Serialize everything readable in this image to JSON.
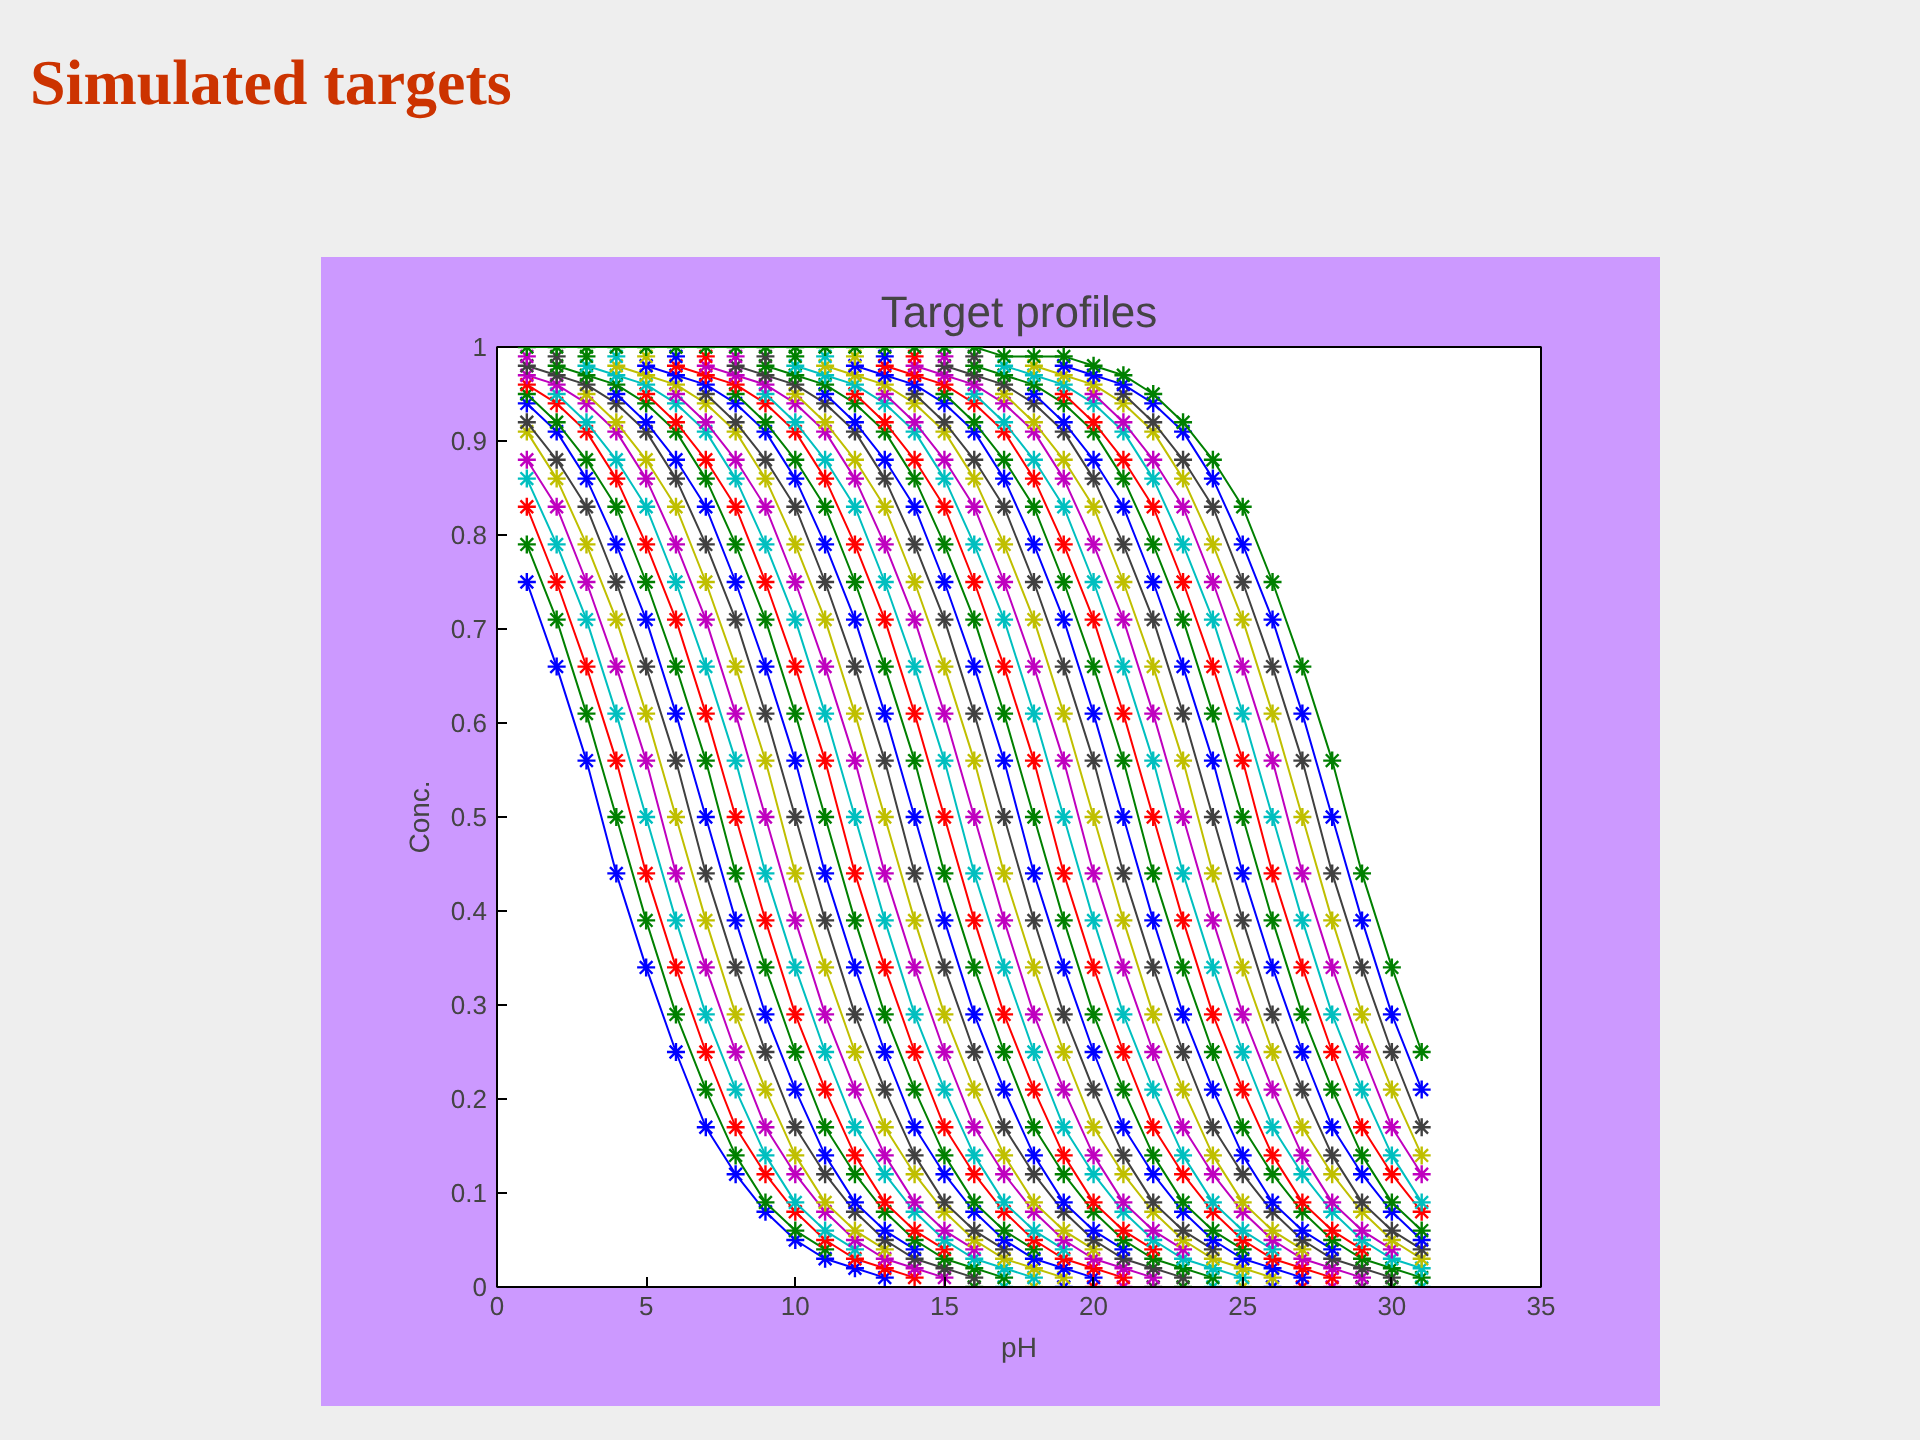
{
  "chart_data": {
    "type": "line",
    "title": "Target profiles",
    "xlabel": "pH",
    "ylabel": "Conc.",
    "annotations": [
      "Simulated targets"
    ],
    "x": [
      1,
      2,
      3,
      4,
      5,
      6,
      7,
      8,
      9,
      10,
      11,
      12,
      13,
      14,
      15,
      16,
      17,
      18,
      19,
      20,
      21,
      22,
      23,
      24,
      25,
      26,
      27,
      28,
      29,
      30,
      31
    ],
    "xlim": [
      0,
      35
    ],
    "xticks": [
      0,
      5,
      10,
      15,
      20,
      25,
      30,
      35
    ],
    "ylim": [
      0,
      1
    ],
    "yticks": [
      0,
      0.1,
      0.2,
      0.3,
      0.4,
      0.5,
      0.6,
      0.7,
      0.8,
      0.9,
      1
    ],
    "grid": false,
    "marker": "cross",
    "line_style": "solid",
    "series": [
      {
        "color": "#0000ff",
        "values": [
          0.75,
          0.66,
          0.56,
          0.44,
          0.34,
          0.25,
          0.17,
          0.12,
          0.08,
          0.05,
          0.03,
          0.02,
          0.01,
          null,
          null,
          null,
          null,
          null,
          null,
          null,
          null,
          null,
          null,
          null,
          null,
          null,
          null,
          null,
          null,
          null,
          null
        ]
      },
      {
        "color": "#008000",
        "values": [
          0.79,
          0.71,
          0.61,
          0.5,
          0.39,
          0.29,
          0.21,
          0.14,
          0.09,
          0.06,
          0.04,
          null,
          null,
          null,
          null,
          0,
          null,
          null,
          null,
          null,
          null,
          null,
          null,
          null,
          null,
          null,
          null,
          null,
          null,
          null,
          null
        ]
      },
      {
        "color": "#ff0000",
        "values": [
          0.83,
          0.75,
          0.66,
          0.56,
          0.44,
          0.34,
          0.25,
          0.17,
          0.12,
          0.08,
          0.05,
          0.03,
          0.02,
          0.01,
          null,
          null,
          null,
          null,
          null,
          null,
          null,
          null,
          null,
          null,
          null,
          null,
          null,
          null,
          null,
          null,
          null
        ]
      },
      {
        "color": "#00bfbf",
        "values": [
          0.86,
          0.79,
          0.71,
          0.61,
          0.5,
          0.39,
          0.29,
          0.21,
          0.14,
          0.09,
          0.06,
          0.04,
          null,
          null,
          null,
          null,
          0,
          null,
          null,
          null,
          null,
          null,
          null,
          null,
          null,
          null,
          null,
          null,
          null,
          null,
          null
        ]
      },
      {
        "color": "#bf00bf",
        "values": [
          0.88,
          0.83,
          0.75,
          0.66,
          0.56,
          0.44,
          0.34,
          0.25,
          0.17,
          0.12,
          0.08,
          0.05,
          0.03,
          0.02,
          0.01,
          null,
          null,
          null,
          null,
          null,
          null,
          null,
          null,
          null,
          null,
          null,
          null,
          null,
          null,
          null,
          null
        ]
      },
      {
        "color": "#bfbf00",
        "values": [
          0.91,
          0.86,
          0.79,
          0.71,
          0.61,
          0.5,
          0.39,
          0.29,
          0.21,
          0.14,
          0.09,
          0.06,
          0.04,
          null,
          null,
          null,
          null,
          0,
          null,
          null,
          null,
          null,
          null,
          null,
          null,
          null,
          null,
          null,
          null,
          null,
          null
        ]
      },
      {
        "color": "#404040",
        "values": [
          0.92,
          0.88,
          0.83,
          0.75,
          0.66,
          0.56,
          0.44,
          0.34,
          0.25,
          0.17,
          0.12,
          0.08,
          0.05,
          0.03,
          0.02,
          0.01,
          null,
          null,
          null,
          null,
          null,
          null,
          null,
          null,
          null,
          null,
          null,
          null,
          null,
          null,
          null
        ]
      },
      {
        "color": "#0000ff",
        "values": [
          0.94,
          0.91,
          0.86,
          0.79,
          0.71,
          0.61,
          0.5,
          0.39,
          0.29,
          0.21,
          0.14,
          0.09,
          0.06,
          0.04,
          null,
          null,
          null,
          null,
          0,
          null,
          null,
          null,
          null,
          null,
          null,
          null,
          null,
          null,
          null,
          null,
          null
        ]
      },
      {
        "color": "#008000",
        "values": [
          0.95,
          0.92,
          0.88,
          0.83,
          0.75,
          0.66,
          0.56,
          0.44,
          0.34,
          0.25,
          0.17,
          0.12,
          0.08,
          0.05,
          0.03,
          0.02,
          0.01,
          null,
          null,
          null,
          null,
          null,
          null,
          null,
          null,
          null,
          null,
          null,
          null,
          null,
          null
        ]
      },
      {
        "color": "#ff0000",
        "values": [
          0.96,
          0.94,
          0.91,
          0.86,
          0.79,
          0.71,
          0.61,
          0.5,
          0.39,
          0.29,
          0.21,
          0.14,
          0.09,
          0.06,
          0.04,
          null,
          null,
          null,
          null,
          0,
          null,
          null,
          null,
          null,
          null,
          null,
          null,
          null,
          null,
          null,
          null
        ]
      },
      {
        "color": "#00bfbf",
        "values": [
          null,
          0.95,
          0.92,
          0.88,
          0.83,
          0.75,
          0.66,
          0.56,
          0.44,
          0.34,
          0.25,
          0.17,
          0.12,
          0.08,
          0.05,
          0.03,
          0.02,
          0.01,
          null,
          null,
          null,
          null,
          null,
          null,
          null,
          null,
          null,
          null,
          null,
          null,
          null
        ]
      },
      {
        "color": "#bf00bf",
        "values": [
          0.97,
          0.96,
          0.94,
          0.91,
          0.86,
          0.79,
          0.71,
          0.61,
          0.5,
          0.39,
          0.29,
          0.21,
          0.14,
          0.09,
          0.06,
          0.04,
          null,
          null,
          null,
          null,
          0,
          null,
          null,
          null,
          null,
          null,
          null,
          null,
          null,
          null,
          null
        ]
      },
      {
        "color": "#bfbf00",
        "values": [
          null,
          null,
          0.95,
          0.92,
          0.88,
          0.83,
          0.75,
          0.66,
          0.56,
          0.44,
          0.34,
          0.25,
          0.17,
          0.12,
          0.08,
          0.05,
          0.03,
          0.02,
          0.01,
          null,
          null,
          null,
          null,
          null,
          null,
          null,
          null,
          null,
          null,
          null,
          null
        ]
      },
      {
        "color": "#404040",
        "values": [
          0.98,
          0.97,
          0.96,
          0.94,
          0.91,
          0.86,
          0.79,
          0.71,
          0.61,
          0.5,
          0.39,
          0.29,
          0.21,
          0.14,
          0.09,
          0.06,
          0.04,
          null,
          null,
          null,
          null,
          0,
          null,
          null,
          null,
          null,
          null,
          null,
          null,
          null,
          null
        ]
      },
      {
        "color": "#0000ff",
        "values": [
          null,
          null,
          null,
          0.95,
          0.92,
          0.88,
          0.83,
          0.75,
          0.66,
          0.56,
          0.44,
          0.34,
          0.25,
          0.17,
          0.12,
          0.08,
          0.05,
          0.03,
          0.02,
          0.01,
          null,
          null,
          null,
          null,
          null,
          null,
          null,
          null,
          null,
          null,
          null
        ]
      },
      {
        "color": "#008000",
        "values": [
          null,
          0.98,
          0.97,
          0.96,
          0.94,
          0.91,
          0.86,
          0.79,
          0.71,
          0.61,
          0.5,
          0.39,
          0.29,
          0.21,
          0.14,
          0.09,
          0.06,
          0.04,
          null,
          null,
          null,
          null,
          0,
          null,
          null,
          null,
          null,
          null,
          null,
          null,
          null
        ]
      },
      {
        "color": "#ff0000",
        "values": [
          null,
          null,
          null,
          null,
          0.95,
          0.92,
          0.88,
          0.83,
          0.75,
          0.66,
          0.56,
          0.44,
          0.34,
          0.25,
          0.17,
          0.12,
          0.08,
          0.05,
          0.03,
          0.02,
          0.01,
          null,
          null,
          null,
          null,
          null,
          null,
          null,
          null,
          null,
          null
        ]
      },
      {
        "color": "#00bfbf",
        "values": [
          null,
          null,
          0.98,
          0.97,
          0.96,
          0.94,
          0.91,
          0.86,
          0.79,
          0.71,
          0.61,
          0.5,
          0.39,
          0.29,
          0.21,
          0.14,
          0.09,
          0.06,
          0.04,
          null,
          null,
          null,
          null,
          0,
          null,
          null,
          null,
          null,
          null,
          null,
          null
        ]
      },
      {
        "color": "#bf00bf",
        "values": [
          0.99,
          null,
          null,
          null,
          null,
          0.95,
          0.92,
          0.88,
          0.83,
          0.75,
          0.66,
          0.56,
          0.44,
          0.34,
          0.25,
          0.17,
          0.12,
          0.08,
          0.05,
          0.03,
          0.02,
          0.01,
          null,
          null,
          null,
          null,
          null,
          null,
          null,
          null,
          null
        ]
      },
      {
        "color": "#bfbf00",
        "values": [
          null,
          null,
          null,
          0.98,
          0.97,
          0.96,
          0.94,
          0.91,
          0.86,
          0.79,
          0.71,
          0.61,
          0.5,
          0.39,
          0.29,
          0.21,
          0.14,
          0.09,
          0.06,
          0.04,
          null,
          null,
          null,
          null,
          0,
          null,
          null,
          null,
          null,
          null,
          null
        ]
      },
      {
        "color": "#404040",
        "values": [
          null,
          0.99,
          null,
          null,
          null,
          null,
          0.95,
          0.92,
          0.88,
          0.83,
          0.75,
          0.66,
          0.56,
          0.44,
          0.34,
          0.25,
          0.17,
          0.12,
          0.08,
          0.05,
          0.03,
          0.02,
          0.01,
          null,
          null,
          null,
          null,
          null,
          null,
          null,
          null
        ]
      },
      {
        "color": "#0000ff",
        "values": [
          null,
          null,
          null,
          null,
          0.98,
          0.97,
          0.96,
          0.94,
          0.91,
          0.86,
          0.79,
          0.71,
          0.61,
          0.5,
          0.39,
          0.29,
          0.21,
          0.14,
          0.09,
          0.06,
          0.04,
          null,
          null,
          null,
          null,
          0,
          null,
          null,
          null,
          null,
          null
        ]
      },
      {
        "color": "#008000",
        "values": [
          null,
          null,
          0.99,
          null,
          null,
          null,
          null,
          0.95,
          0.92,
          0.88,
          0.83,
          0.75,
          0.66,
          0.56,
          0.44,
          0.34,
          0.25,
          0.17,
          0.12,
          0.08,
          0.05,
          0.03,
          0.02,
          0.01,
          null,
          null,
          null,
          null,
          null,
          null,
          null
        ]
      },
      {
        "color": "#ff0000",
        "values": [
          null,
          null,
          null,
          null,
          null,
          0.98,
          0.97,
          0.96,
          0.94,
          0.91,
          0.86,
          0.79,
          0.71,
          0.61,
          0.5,
          0.39,
          0.29,
          0.21,
          0.14,
          0.09,
          0.06,
          0.04,
          null,
          null,
          null,
          null,
          0,
          null,
          null,
          null,
          null
        ]
      },
      {
        "color": "#00bfbf",
        "values": [
          null,
          null,
          null,
          0.99,
          null,
          null,
          null,
          null,
          0.95,
          0.92,
          0.88,
          0.83,
          0.75,
          0.66,
          0.56,
          0.44,
          0.34,
          0.25,
          0.17,
          0.12,
          0.08,
          0.05,
          0.03,
          0.02,
          0.01,
          null,
          null,
          null,
          null,
          null,
          null
        ]
      },
      {
        "color": "#bf00bf",
        "values": [
          null,
          null,
          null,
          null,
          null,
          null,
          0.98,
          0.97,
          0.96,
          0.94,
          0.91,
          0.86,
          0.79,
          0.71,
          0.61,
          0.5,
          0.39,
          0.29,
          0.21,
          0.14,
          0.09,
          0.06,
          0.04,
          null,
          null,
          null,
          null,
          0,
          null,
          null,
          null
        ]
      },
      {
        "color": "#bfbf00",
        "values": [
          null,
          null,
          null,
          null,
          0.99,
          null,
          null,
          null,
          null,
          0.95,
          0.92,
          0.88,
          0.83,
          0.75,
          0.66,
          0.56,
          0.44,
          0.34,
          0.25,
          0.17,
          0.12,
          0.08,
          0.05,
          0.03,
          0.02,
          0.01,
          null,
          null,
          null,
          null,
          null
        ]
      },
      {
        "color": "#404040",
        "values": [
          null,
          null,
          null,
          null,
          null,
          null,
          null,
          0.98,
          0.97,
          0.96,
          0.94,
          0.91,
          0.86,
          0.79,
          0.71,
          0.61,
          0.5,
          0.39,
          0.29,
          0.21,
          0.14,
          0.09,
          0.06,
          0.04,
          null,
          null,
          null,
          null,
          0,
          null,
          null
        ]
      },
      {
        "color": "#0000ff",
        "values": [
          null,
          null,
          null,
          null,
          null,
          0.99,
          null,
          null,
          null,
          null,
          0.95,
          0.92,
          0.88,
          0.83,
          0.75,
          0.66,
          0.56,
          0.44,
          0.34,
          0.25,
          0.17,
          0.12,
          0.08,
          0.05,
          0.03,
          0.02,
          0.01,
          null,
          null,
          null,
          null
        ]
      },
      {
        "color": "#008000",
        "values": [
          null,
          null,
          null,
          null,
          null,
          null,
          null,
          null,
          0.98,
          0.97,
          0.96,
          0.94,
          0.91,
          0.86,
          0.79,
          0.71,
          0.61,
          0.5,
          0.39,
          0.29,
          0.21,
          0.14,
          0.09,
          0.06,
          0.04,
          null,
          null,
          null,
          null,
          0,
          null
        ]
      },
      {
        "color": "#ff0000",
        "values": [
          null,
          null,
          null,
          null,
          null,
          null,
          0.99,
          null,
          null,
          null,
          null,
          0.95,
          0.92,
          0.88,
          0.83,
          0.75,
          0.66,
          0.56,
          0.44,
          0.34,
          0.25,
          0.17,
          0.12,
          0.08,
          0.05,
          0.03,
          0.02,
          0.01,
          null,
          null,
          null
        ]
      },
      {
        "color": "#00bfbf",
        "values": [
          null,
          null,
          null,
          null,
          null,
          null,
          null,
          null,
          null,
          0.98,
          0.97,
          0.96,
          0.94,
          0.91,
          0.86,
          0.79,
          0.71,
          0.61,
          0.5,
          0.39,
          0.29,
          0.21,
          0.14,
          0.09,
          0.06,
          0.04,
          null,
          null,
          null,
          null,
          0
        ]
      },
      {
        "color": "#bf00bf",
        "values": [
          null,
          null,
          null,
          null,
          null,
          null,
          null,
          0.99,
          null,
          null,
          null,
          null,
          0.95,
          0.92,
          0.88,
          0.83,
          0.75,
          0.66,
          0.56,
          0.44,
          0.34,
          0.25,
          0.17,
          0.12,
          0.08,
          0.05,
          0.03,
          0.02,
          0.01,
          null,
          null
        ]
      },
      {
        "color": "#bfbf00",
        "values": [
          null,
          null,
          null,
          null,
          null,
          null,
          null,
          null,
          null,
          null,
          0.98,
          0.97,
          0.96,
          0.94,
          0.91,
          0.86,
          0.79,
          0.71,
          0.61,
          0.5,
          0.39,
          0.29,
          0.21,
          0.14,
          0.09,
          0.06,
          0.04,
          null,
          null,
          null,
          null
        ]
      },
      {
        "color": "#404040",
        "values": [
          null,
          null,
          null,
          null,
          null,
          null,
          null,
          null,
          0.99,
          null,
          null,
          null,
          null,
          0.95,
          0.92,
          0.88,
          0.83,
          0.75,
          0.66,
          0.56,
          0.44,
          0.34,
          0.25,
          0.17,
          0.12,
          0.08,
          0.05,
          0.03,
          0.02,
          0.01,
          null
        ]
      },
      {
        "color": "#0000ff",
        "values": [
          null,
          null,
          null,
          null,
          null,
          null,
          null,
          null,
          null,
          null,
          null,
          0.98,
          0.97,
          0.96,
          0.94,
          0.91,
          0.86,
          0.79,
          0.71,
          0.61,
          0.5,
          0.39,
          0.29,
          0.21,
          0.14,
          0.09,
          0.06,
          0.04,
          null,
          null,
          null
        ]
      },
      {
        "color": "#008000",
        "values": [
          null,
          null,
          null,
          null,
          null,
          null,
          null,
          null,
          null,
          0.99,
          null,
          null,
          null,
          null,
          0.95,
          0.92,
          0.88,
          0.83,
          0.75,
          0.66,
          0.56,
          0.44,
          0.34,
          0.25,
          0.17,
          0.12,
          0.08,
          0.05,
          0.03,
          0.02,
          0.01
        ]
      },
      {
        "color": "#ff0000",
        "values": [
          null,
          null,
          null,
          null,
          null,
          null,
          null,
          null,
          null,
          null,
          null,
          null,
          0.98,
          0.97,
          0.96,
          0.94,
          0.91,
          0.86,
          0.79,
          0.71,
          0.61,
          0.5,
          0.39,
          0.29,
          0.21,
          0.14,
          0.09,
          0.06,
          0.04,
          null,
          null
        ]
      },
      {
        "color": "#00bfbf",
        "values": [
          null,
          null,
          null,
          null,
          null,
          null,
          null,
          null,
          null,
          null,
          0.99,
          null,
          null,
          null,
          null,
          0.95,
          0.92,
          0.88,
          0.83,
          0.75,
          0.66,
          0.56,
          0.44,
          0.34,
          0.25,
          0.17,
          0.12,
          0.08,
          0.05,
          0.03,
          0.02
        ]
      },
      {
        "color": "#bf00bf",
        "values": [
          null,
          null,
          null,
          null,
          null,
          null,
          null,
          null,
          null,
          null,
          null,
          null,
          null,
          0.98,
          0.97,
          0.96,
          0.94,
          0.91,
          0.86,
          0.79,
          0.71,
          0.61,
          0.5,
          0.39,
          0.29,
          0.21,
          0.14,
          0.09,
          0.06,
          0.04,
          null
        ]
      },
      {
        "color": "#bfbf00",
        "values": [
          null,
          null,
          null,
          null,
          null,
          null,
          null,
          null,
          null,
          null,
          null,
          0.99,
          null,
          null,
          null,
          null,
          0.95,
          0.92,
          0.88,
          0.83,
          0.75,
          0.66,
          0.56,
          0.44,
          0.34,
          0.25,
          0.17,
          0.12,
          0.08,
          0.05,
          0.03
        ]
      },
      {
        "color": "#404040",
        "values": [
          null,
          null,
          null,
          null,
          null,
          null,
          null,
          null,
          null,
          null,
          null,
          null,
          null,
          null,
          0.98,
          0.97,
          0.96,
          0.94,
          0.91,
          0.86,
          0.79,
          0.71,
          0.61,
          0.5,
          0.39,
          0.29,
          0.21,
          0.14,
          0.09,
          0.06,
          0.04
        ]
      },
      {
        "color": "#0000ff",
        "values": [
          null,
          null,
          null,
          null,
          null,
          null,
          null,
          null,
          null,
          null,
          null,
          null,
          0.99,
          null,
          null,
          null,
          null,
          0.95,
          0.92,
          0.88,
          0.83,
          0.75,
          0.66,
          0.56,
          0.44,
          0.34,
          0.25,
          0.17,
          0.12,
          0.08,
          0.05
        ]
      },
      {
        "color": "#008000",
        "values": [
          null,
          null,
          null,
          null,
          null,
          null,
          null,
          null,
          null,
          null,
          null,
          null,
          null,
          null,
          null,
          0.98,
          0.97,
          0.96,
          0.94,
          0.91,
          0.86,
          0.79,
          0.71,
          0.61,
          0.5,
          0.39,
          0.29,
          0.21,
          0.14,
          0.09,
          0.06
        ]
      },
      {
        "color": "#ff0000",
        "values": [
          null,
          null,
          null,
          null,
          null,
          null,
          null,
          null,
          null,
          null,
          null,
          null,
          null,
          0.99,
          null,
          null,
          null,
          null,
          0.95,
          0.92,
          0.88,
          0.83,
          0.75,
          0.66,
          0.56,
          0.44,
          0.34,
          0.25,
          0.17,
          0.12,
          0.08
        ]
      },
      {
        "color": "#00bfbf",
        "values": [
          null,
          null,
          null,
          null,
          null,
          null,
          null,
          null,
          null,
          null,
          null,
          null,
          null,
          null,
          null,
          null,
          0.98,
          0.97,
          0.96,
          0.94,
          0.91,
          0.86,
          0.79,
          0.71,
          0.61,
          0.5,
          0.39,
          0.29,
          0.21,
          0.14,
          0.09
        ]
      },
      {
        "color": "#bf00bf",
        "values": [
          null,
          null,
          null,
          null,
          null,
          null,
          null,
          null,
          null,
          null,
          null,
          null,
          null,
          null,
          0.99,
          null,
          null,
          null,
          null,
          0.95,
          0.92,
          0.88,
          0.83,
          0.75,
          0.66,
          0.56,
          0.44,
          0.34,
          0.25,
          0.17,
          0.12
        ]
      },
      {
        "color": "#bfbf00",
        "values": [
          null,
          null,
          null,
          null,
          null,
          null,
          null,
          null,
          null,
          null,
          null,
          null,
          null,
          null,
          null,
          null,
          null,
          0.98,
          0.97,
          0.96,
          0.94,
          0.91,
          0.86,
          0.79,
          0.71,
          0.61,
          0.5,
          0.39,
          0.29,
          0.21,
          0.14
        ]
      },
      {
        "color": "#404040",
        "values": [
          null,
          null,
          null,
          null,
          null,
          null,
          null,
          null,
          null,
          null,
          null,
          null,
          null,
          null,
          null,
          0.99,
          null,
          null,
          null,
          null,
          0.95,
          0.92,
          0.88,
          0.83,
          0.75,
          0.66,
          0.56,
          0.44,
          0.34,
          0.25,
          0.17
        ]
      },
      {
        "color": "#0000ff",
        "values": [
          null,
          null,
          null,
          null,
          null,
          null,
          null,
          null,
          null,
          null,
          null,
          null,
          null,
          null,
          null,
          null,
          null,
          null,
          0.98,
          0.97,
          0.96,
          0.94,
          0.91,
          0.86,
          0.79,
          0.71,
          0.61,
          0.5,
          0.39,
          0.29,
          0.21
        ]
      },
      {
        "color": "#008000",
        "values": [
          1,
          1,
          1,
          1,
          1,
          1,
          1,
          1,
          1,
          1,
          1,
          1,
          1,
          1,
          1,
          1,
          0.99,
          0.99,
          0.99,
          0.98,
          0.97,
          0.95,
          0.92,
          0.88,
          0.83,
          0.75,
          0.66,
          0.56,
          0.44,
          0.34,
          0.25
        ]
      }
    ]
  }
}
